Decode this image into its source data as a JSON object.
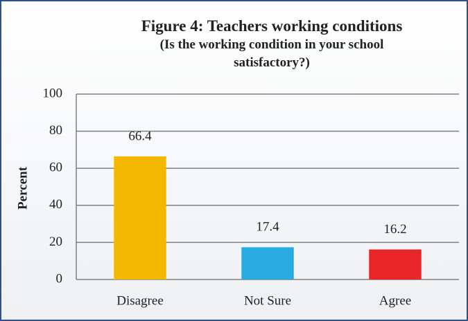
{
  "chart_data": {
    "type": "bar",
    "title": "Figure 4: Teachers working conditions",
    "subtitle": "(Is the working condition in your school satisfactory?)",
    "y_label": "Percent",
    "categories": [
      "Disagree",
      "Not Sure",
      "Agree"
    ],
    "values": [
      66.4,
      17.4,
      16.2
    ],
    "colors": [
      "#f5b800",
      "#29abe2",
      "#e8262a"
    ],
    "ylim": [
      0,
      100
    ],
    "yticks": [
      0,
      20,
      40,
      60,
      80,
      100
    ],
    "grid": true
  }
}
